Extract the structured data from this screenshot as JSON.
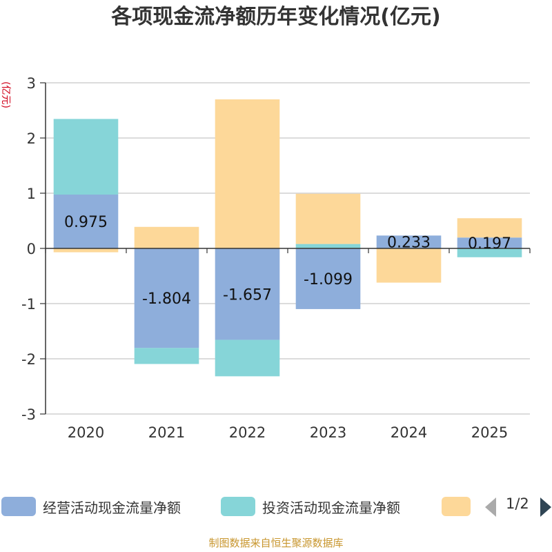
{
  "chart_data": {
    "type": "bar",
    "stacked": true,
    "title": "各项现金流净额历年变化情况(亿元)",
    "ylabel": "(亿元)",
    "categories": [
      "2020",
      "2021",
      "2022",
      "2023",
      "2024",
      "2025"
    ],
    "ylim": [
      -3,
      3
    ],
    "yticks": [
      -3,
      -2,
      -1,
      0,
      1,
      2,
      3
    ],
    "grid": true,
    "series": [
      {
        "name": "经营活动现金流量净额",
        "color": "#8eaedb",
        "values": [
          0.975,
          -1.804,
          -1.657,
          -1.099,
          0.233,
          0.197
        ],
        "labels": [
          "0.975",
          "-1.804",
          "-1.657",
          "-1.099",
          "0.233",
          "0.197"
        ]
      },
      {
        "name": "投资活动现金流量净额",
        "color": "#86d5d8",
        "values": [
          1.37,
          -0.29,
          -0.66,
          0.08,
          0.0,
          -0.16
        ]
      },
      {
        "name": "",
        "color": "#fdd899",
        "values": [
          -0.07,
          0.39,
          2.7,
          0.91,
          -0.62,
          0.35
        ]
      }
    ]
  },
  "legend": {
    "pager": "1/2"
  },
  "source": "制图数据来自恒生聚源数据库"
}
